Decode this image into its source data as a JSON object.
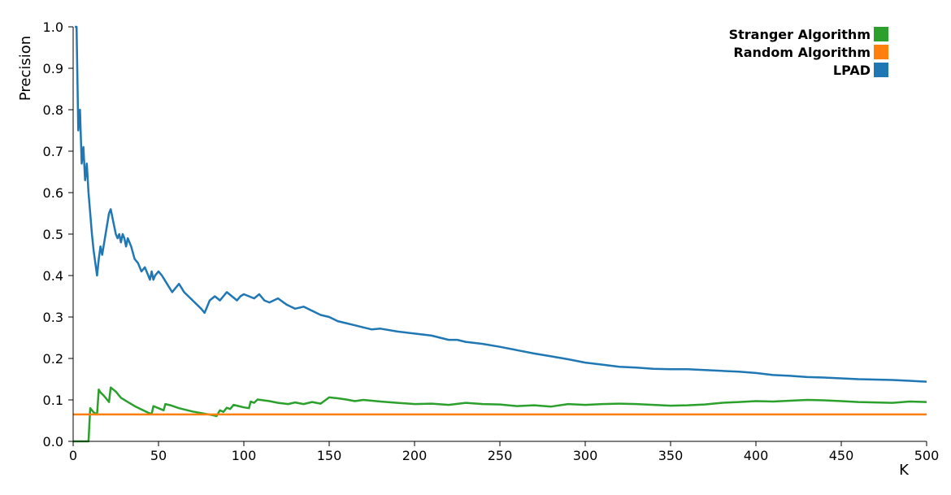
{
  "chart_data": {
    "type": "line",
    "xlabel": "K",
    "ylabel": "Precision",
    "xlim": [
      0,
      500
    ],
    "ylim": [
      0,
      1.0
    ],
    "x_ticks": [
      "0",
      "50",
      "100",
      "150",
      "200",
      "250",
      "300",
      "350",
      "400",
      "450",
      "500"
    ],
    "y_ticks": [
      "0.0",
      "0.1",
      "0.2",
      "0.3",
      "0.4",
      "0.5",
      "0.6",
      "0.7",
      "0.8",
      "0.9",
      "1.0"
    ],
    "grid": false,
    "legend_position": "top-right",
    "series": [
      {
        "name": "Stranger Algorithm",
        "color": "#2ca02c",
        "points": [
          [
            0,
            0
          ],
          [
            9,
            0
          ],
          [
            10,
            0.08
          ],
          [
            12,
            0.07
          ],
          [
            14,
            0.065
          ],
          [
            15,
            0.125
          ],
          [
            16,
            0.118
          ],
          [
            18,
            0.11
          ],
          [
            20,
            0.1
          ],
          [
            21,
            0.095
          ],
          [
            22,
            0.13
          ],
          [
            25,
            0.12
          ],
          [
            28,
            0.105
          ],
          [
            32,
            0.095
          ],
          [
            36,
            0.085
          ],
          [
            40,
            0.077
          ],
          [
            44,
            0.069
          ],
          [
            46,
            0.066
          ],
          [
            47,
            0.085
          ],
          [
            50,
            0.08
          ],
          [
            53,
            0.075
          ],
          [
            54,
            0.09
          ],
          [
            57,
            0.087
          ],
          [
            62,
            0.08
          ],
          [
            70,
            0.072
          ],
          [
            78,
            0.066
          ],
          [
            82,
            0.063
          ],
          [
            84,
            0.061
          ],
          [
            86,
            0.075
          ],
          [
            88,
            0.071
          ],
          [
            90,
            0.081
          ],
          [
            92,
            0.078
          ],
          [
            94,
            0.088
          ],
          [
            97,
            0.085
          ],
          [
            100,
            0.082
          ],
          [
            103,
            0.08
          ],
          [
            104,
            0.096
          ],
          [
            106,
            0.093
          ],
          [
            108,
            0.101
          ],
          [
            115,
            0.097
          ],
          [
            120,
            0.093
          ],
          [
            126,
            0.09
          ],
          [
            130,
            0.094
          ],
          [
            135,
            0.09
          ],
          [
            140,
            0.095
          ],
          [
            145,
            0.091
          ],
          [
            150,
            0.106
          ],
          [
            155,
            0.104
          ],
          [
            160,
            0.101
          ],
          [
            165,
            0.097
          ],
          [
            170,
            0.1
          ],
          [
            180,
            0.096
          ],
          [
            190,
            0.093
          ],
          [
            200,
            0.09
          ],
          [
            210,
            0.091
          ],
          [
            220,
            0.088
          ],
          [
            230,
            0.093
          ],
          [
            240,
            0.09
          ],
          [
            250,
            0.089
          ],
          [
            260,
            0.085
          ],
          [
            270,
            0.087
          ],
          [
            280,
            0.084
          ],
          [
            290,
            0.09
          ],
          [
            300,
            0.088
          ],
          [
            310,
            0.09
          ],
          [
            320,
            0.091
          ],
          [
            330,
            0.09
          ],
          [
            340,
            0.088
          ],
          [
            350,
            0.086
          ],
          [
            360,
            0.087
          ],
          [
            370,
            0.089
          ],
          [
            380,
            0.093
          ],
          [
            390,
            0.095
          ],
          [
            400,
            0.097
          ],
          [
            410,
            0.096
          ],
          [
            420,
            0.098
          ],
          [
            430,
            0.1
          ],
          [
            440,
            0.099
          ],
          [
            450,
            0.097
          ],
          [
            460,
            0.095
          ],
          [
            470,
            0.094
          ],
          [
            480,
            0.093
          ],
          [
            490,
            0.096
          ],
          [
            500,
            0.095
          ]
        ]
      },
      {
        "name": "Random Algorithm",
        "color": "#ff7f0e",
        "points": [
          [
            0,
            0.065
          ],
          [
            500,
            0.065
          ]
        ]
      },
      {
        "name": "LPAD",
        "color": "#1f77b4",
        "points": [
          [
            1,
            1.0
          ],
          [
            2,
            1.0
          ],
          [
            3,
            0.75
          ],
          [
            4,
            0.8
          ],
          [
            5,
            0.67
          ],
          [
            6,
            0.71
          ],
          [
            7,
            0.63
          ],
          [
            8,
            0.67
          ],
          [
            9,
            0.6
          ],
          [
            10,
            0.55
          ],
          [
            11,
            0.5
          ],
          [
            12,
            0.46
          ],
          [
            13,
            0.43
          ],
          [
            14,
            0.4
          ],
          [
            15,
            0.44
          ],
          [
            16,
            0.47
          ],
          [
            17,
            0.45
          ],
          [
            19,
            0.5
          ],
          [
            21,
            0.55
          ],
          [
            22,
            0.56
          ],
          [
            23,
            0.54
          ],
          [
            25,
            0.5
          ],
          [
            26,
            0.49
          ],
          [
            27,
            0.5
          ],
          [
            28,
            0.48
          ],
          [
            29,
            0.5
          ],
          [
            30,
            0.49
          ],
          [
            31,
            0.47
          ],
          [
            32,
            0.49
          ],
          [
            34,
            0.47
          ],
          [
            36,
            0.44
          ],
          [
            38,
            0.43
          ],
          [
            40,
            0.41
          ],
          [
            42,
            0.42
          ],
          [
            44,
            0.4
          ],
          [
            45,
            0.39
          ],
          [
            46,
            0.41
          ],
          [
            47,
            0.39
          ],
          [
            48,
            0.4
          ],
          [
            50,
            0.41
          ],
          [
            52,
            0.4
          ],
          [
            55,
            0.38
          ],
          [
            58,
            0.36
          ],
          [
            60,
            0.37
          ],
          [
            62,
            0.38
          ],
          [
            65,
            0.36
          ],
          [
            70,
            0.34
          ],
          [
            75,
            0.32
          ],
          [
            77,
            0.31
          ],
          [
            80,
            0.34
          ],
          [
            83,
            0.35
          ],
          [
            86,
            0.34
          ],
          [
            88,
            0.35
          ],
          [
            90,
            0.36
          ],
          [
            93,
            0.35
          ],
          [
            96,
            0.34
          ],
          [
            98,
            0.35
          ],
          [
            100,
            0.355
          ],
          [
            103,
            0.35
          ],
          [
            106,
            0.345
          ],
          [
            109,
            0.355
          ],
          [
            112,
            0.34
          ],
          [
            115,
            0.335
          ],
          [
            120,
            0.345
          ],
          [
            125,
            0.33
          ],
          [
            130,
            0.32
          ],
          [
            135,
            0.325
          ],
          [
            140,
            0.315
          ],
          [
            145,
            0.305
          ],
          [
            150,
            0.3
          ],
          [
            155,
            0.29
          ],
          [
            160,
            0.285
          ],
          [
            165,
            0.28
          ],
          [
            170,
            0.275
          ],
          [
            175,
            0.27
          ],
          [
            180,
            0.272
          ],
          [
            190,
            0.265
          ],
          [
            200,
            0.26
          ],
          [
            210,
            0.255
          ],
          [
            220,
            0.245
          ],
          [
            225,
            0.245
          ],
          [
            230,
            0.24
          ],
          [
            240,
            0.235
          ],
          [
            250,
            0.228
          ],
          [
            260,
            0.22
          ],
          [
            270,
            0.212
          ],
          [
            280,
            0.205
          ],
          [
            290,
            0.198
          ],
          [
            300,
            0.19
          ],
          [
            310,
            0.185
          ],
          [
            320,
            0.18
          ],
          [
            330,
            0.178
          ],
          [
            340,
            0.175
          ],
          [
            350,
            0.174
          ],
          [
            360,
            0.174
          ],
          [
            370,
            0.172
          ],
          [
            380,
            0.17
          ],
          [
            390,
            0.168
          ],
          [
            400,
            0.165
          ],
          [
            410,
            0.16
          ],
          [
            420,
            0.158
          ],
          [
            430,
            0.155
          ],
          [
            440,
            0.154
          ],
          [
            450,
            0.152
          ],
          [
            460,
            0.15
          ],
          [
            470,
            0.149
          ],
          [
            480,
            0.148
          ],
          [
            490,
            0.146
          ],
          [
            500,
            0.144
          ]
        ]
      }
    ]
  }
}
